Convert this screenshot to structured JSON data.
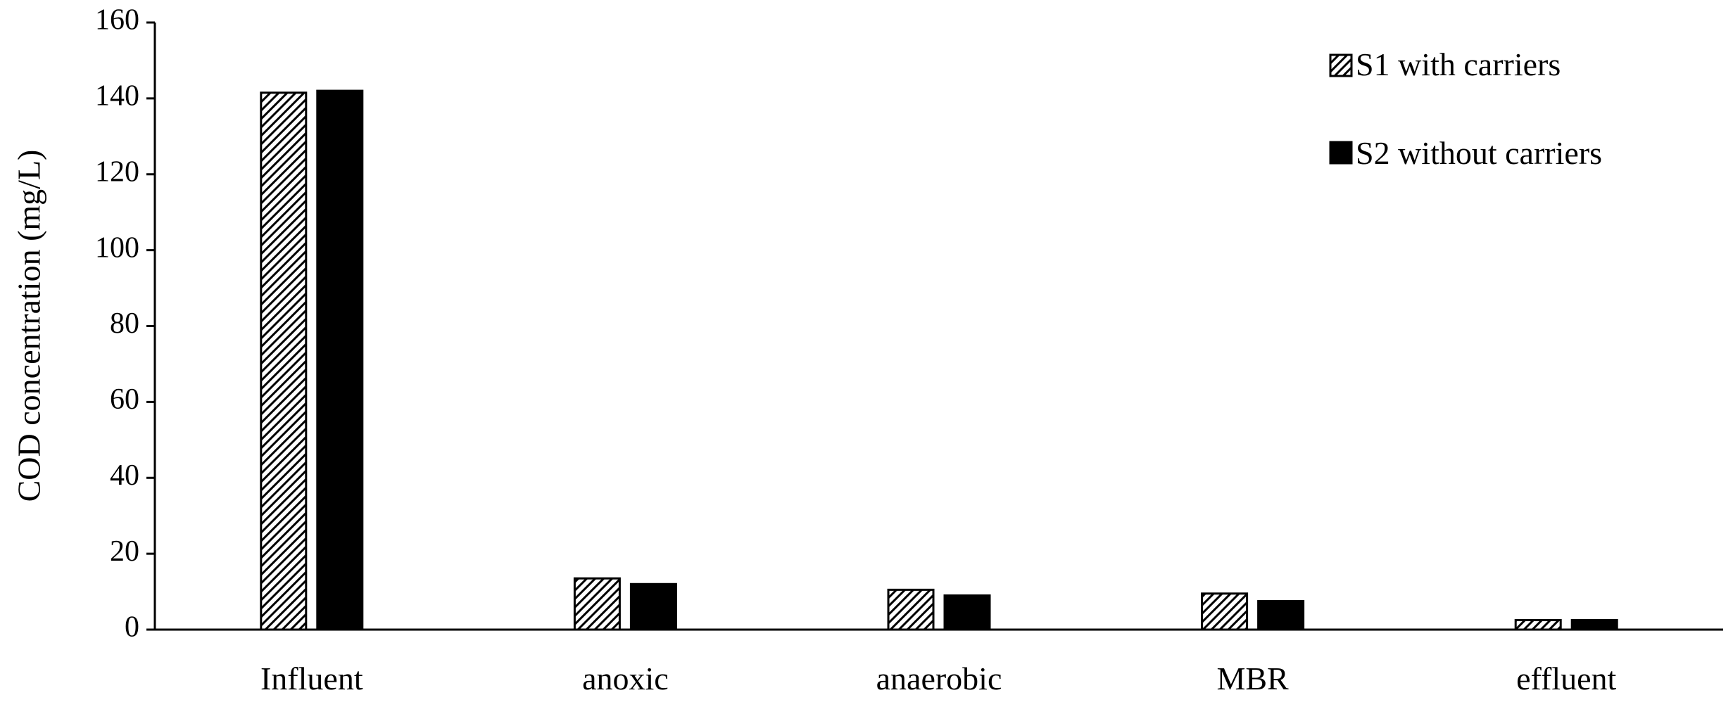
{
  "chart_data": {
    "type": "bar",
    "title": "",
    "xlabel": "",
    "ylabel": "COD concentration (mg/L)",
    "ylim": [
      0,
      160
    ],
    "yticks": [
      0,
      20,
      40,
      60,
      80,
      100,
      120,
      140,
      160
    ],
    "categories": [
      "Influent",
      "anoxic",
      "anaerobic",
      "MBR",
      "effluent"
    ],
    "series": [
      {
        "name": "S1 with carriers",
        "pattern": "diagonal-hatch",
        "color": "#000000",
        "values": [
          141.5,
          13.5,
          10.5,
          9.5,
          2.5
        ]
      },
      {
        "name": "S2 without carriers",
        "pattern": "solid",
        "color": "#000000",
        "values": [
          142,
          12,
          9,
          7.5,
          2.5
        ]
      }
    ],
    "grid": false,
    "legend_position": "top-right"
  }
}
